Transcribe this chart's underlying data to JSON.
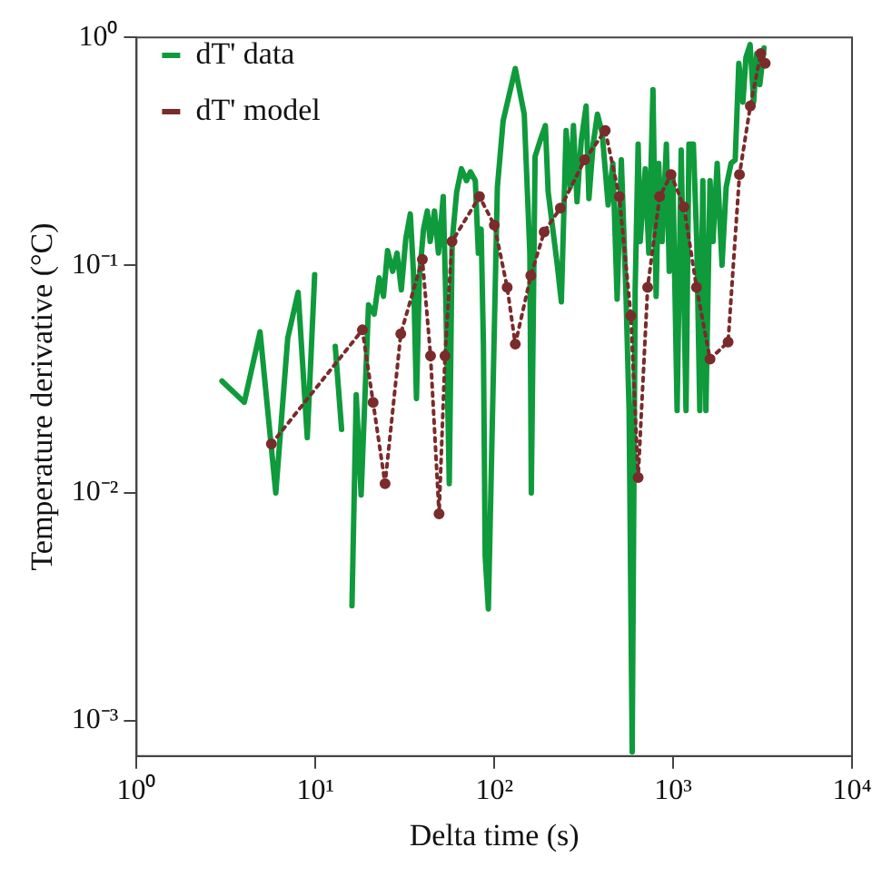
{
  "chart_data": {
    "type": "line",
    "xlabel": "Delta time (s)",
    "ylabel": "Temperature derivative (°C)",
    "log": "xy",
    "legend": "top left",
    "xlim": [
      1,
      10000
    ],
    "ylim": [
      0.0007,
      1
    ],
    "xticks": [
      {
        "value": 1,
        "label": "10⁰"
      },
      {
        "value": 10,
        "label": "10¹"
      },
      {
        "value": 100,
        "label": "10²"
      },
      {
        "value": 1000,
        "label": "10³"
      },
      {
        "value": 10000,
        "label": "10⁴"
      }
    ],
    "yticks": [
      {
        "value": 0.001,
        "label": "10⁻³"
      },
      {
        "value": 0.01,
        "label": "10⁻²"
      },
      {
        "value": 0.1,
        "label": "10⁻¹"
      },
      {
        "value": 1,
        "label": "10⁰"
      }
    ],
    "series": [
      {
        "name": "dT' data",
        "color": "#0f9a3c",
        "line_style": "solid",
        "x": [
          3,
          4,
          4.9,
          6,
          7,
          8,
          9,
          9.9,
          11.3,
          12.9,
          14,
          15,
          16,
          16.9,
          18,
          19.8,
          21.3,
          22.7,
          24,
          25.3,
          27,
          28.6,
          30.2,
          32,
          33.9,
          35.3,
          36.7,
          38.1,
          40.2,
          42.2,
          43.8,
          46.3,
          48.7,
          51.8,
          53.6,
          56,
          58.1,
          61.6,
          65.5,
          69.9,
          73.5,
          78.3,
          81.4,
          84.4,
          86.9,
          88.9,
          92.6,
          104,
          112,
          131,
          147,
          158,
          161,
          169,
          182,
          193,
          200,
          225,
          237,
          252,
          266,
          277,
          290,
          306,
          326,
          338,
          357,
          377,
          401,
          433,
          460,
          486,
          513,
          545,
          567,
          590,
          613,
          637,
          654,
          698,
          731,
          771,
          803,
          830,
          867,
          916,
          951,
          996,
          1052,
          1109,
          1180,
          1225,
          1297,
          1355,
          1409,
          1465,
          1524,
          1607,
          1670,
          1762,
          1875,
          1978,
          2107,
          2222,
          2328,
          2455,
          2553,
          2692,
          2818,
          2934,
          3050,
          3221
        ],
        "values": [
          0.031,
          0.025,
          0.051,
          0.01,
          0.048,
          0.076,
          0.0175,
          0.091,
          null,
          0.044,
          0.019,
          null,
          0.0032,
          0.027,
          0.0098,
          0.067,
          0.061,
          0.088,
          0.073,
          0.116,
          0.094,
          0.113,
          0.078,
          0.131,
          0.168,
          0.094,
          0.026,
          0.088,
          0.144,
          0.173,
          0.127,
          0.173,
          0.113,
          0.2,
          0.069,
          0.011,
          0.127,
          0.21,
          0.265,
          0.235,
          0.257,
          0.235,
          0.113,
          0.144,
          0.045,
          0.0053,
          0.0031,
          0.22,
          0.43,
          0.73,
          0.46,
          0.113,
          0.01,
          0.3,
          0.36,
          0.41,
          0.21,
          0.1,
          0.069,
          0.39,
          0.22,
          0.41,
          0.19,
          0.35,
          0.5,
          0.196,
          0.34,
          0.46,
          0.38,
          0.184,
          0.28,
          0.071,
          0.29,
          0.073,
          0.023,
          0.00073,
          0.078,
          0.34,
          0.127,
          0.265,
          0.113,
          0.59,
          0.073,
          0.28,
          0.127,
          0.34,
          0.094,
          0.25,
          0.023,
          0.32,
          0.023,
          0.34,
          0.34,
          0.127,
          0.023,
          0.235,
          0.023,
          0.235,
          0.127,
          0.28,
          0.1,
          0.22,
          0.28,
          0.29,
          0.77,
          0.52,
          0.82,
          0.93,
          0.52,
          0.85,
          0.62,
          0.9
        ]
      },
      {
        "name": "dT' model",
        "color": "#7a2b2b",
        "line_style": "dotted",
        "marker": "circle",
        "x": [
          5.67,
          18.3,
          21,
          24.5,
          30,
          39.6,
          44,
          49.1,
          53,
          58,
          82.6,
          100,
          118,
          131,
          160,
          190,
          234,
          320,
          417,
          500,
          580,
          637,
          720,
          840,
          973,
          1150,
          1350,
          1607,
          2028,
          2348,
          2700,
          3090,
          3270
        ],
        "values": [
          0.0164,
          0.052,
          0.025,
          0.011,
          0.05,
          0.106,
          0.04,
          0.0081,
          0.04,
          0.127,
          0.2,
          0.15,
          0.08,
          0.045,
          0.09,
          0.14,
          0.178,
          0.29,
          0.39,
          0.2,
          0.06,
          0.0117,
          0.08,
          0.2,
          0.25,
          0.18,
          0.08,
          0.0387,
          0.046,
          0.25,
          0.5,
          0.85,
          0.77
        ]
      }
    ]
  }
}
